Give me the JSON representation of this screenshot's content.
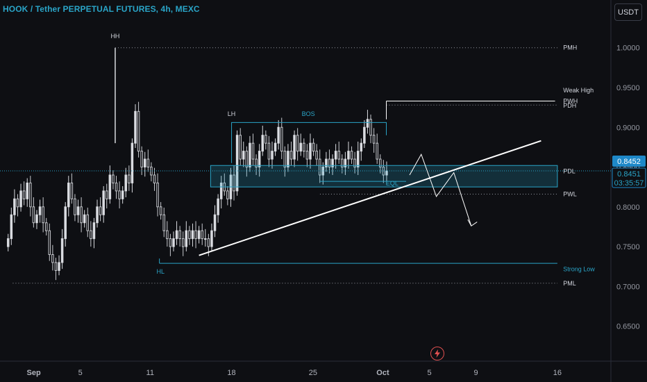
{
  "header": {
    "title": "HOOK / Tether PERPETUAL FUTURES, 4h, MEXC",
    "currency_button": "USDT"
  },
  "colors": {
    "background": "#0e0f13",
    "accent": "#2aa5c8",
    "candle_up": "#d9dbe0",
    "candle_down": "#c7c9ce",
    "trendline": "#ffffff",
    "price_tag": "#1e88c8",
    "lightning": "#e05050"
  },
  "icons": {
    "lightning": "lightning-icon"
  },
  "chart_data": {
    "type": "candlestick",
    "title": "HOOK / Tether PERPETUAL FUTURES, 4h, MEXC",
    "y_ticks": [
      "1.0000",
      "0.9500",
      "0.9000",
      "0.8500",
      "0.8000",
      "0.7500",
      "0.7000",
      "0.6500"
    ],
    "y_tick_values": [
      1.0,
      0.95,
      0.9,
      0.85,
      0.8,
      0.75,
      0.7,
      0.65
    ],
    "ylim": [
      0.606,
      1.06
    ],
    "x_ticks": [
      {
        "label": "Sep",
        "day": 1
      },
      {
        "label": "5",
        "day": 5
      },
      {
        "label": "11",
        "day": 11
      },
      {
        "label": "18",
        "day": 18
      },
      {
        "label": "25",
        "day": 25
      },
      {
        "label": "Oct",
        "day": 31
      },
      {
        "label": "5",
        "day": 35
      },
      {
        "label": "9",
        "day": 39
      },
      {
        "label": "16",
        "day": 46
      }
    ],
    "xlim": [
      -1.9,
      50.6
    ],
    "price_tags": {
      "upper_value": "0.8452",
      "lower_value": "0.8451",
      "countdown": "03:35:57"
    },
    "current_price": 0.8452,
    "closes": [
      0.76,
      0.79,
      0.81,
      0.8,
      0.82,
      0.81,
      0.83,
      0.8,
      0.78,
      0.79,
      0.8,
      0.78,
      0.77,
      0.74,
      0.73,
      0.72,
      0.73,
      0.76,
      0.8,
      0.83,
      0.81,
      0.79,
      0.8,
      0.78,
      0.79,
      0.77,
      0.76,
      0.78,
      0.8,
      0.79,
      0.82,
      0.81,
      0.84,
      0.83,
      0.82,
      0.81,
      0.82,
      0.84,
      0.83,
      0.88,
      0.92,
      0.87,
      0.85,
      0.86,
      0.85,
      0.84,
      0.83,
      0.8,
      0.79,
      0.77,
      0.76,
      0.75,
      0.76,
      0.77,
      0.76,
      0.75,
      0.77,
      0.76,
      0.77,
      0.76,
      0.77,
      0.76,
      0.76,
      0.75,
      0.77,
      0.79,
      0.81,
      0.83,
      0.82,
      0.81,
      0.84,
      0.82,
      0.89,
      0.86,
      0.87,
      0.85,
      0.88,
      0.86,
      0.85,
      0.87,
      0.89,
      0.88,
      0.86,
      0.87,
      0.88,
      0.9,
      0.87,
      0.85,
      0.87,
      0.86,
      0.89,
      0.87,
      0.88,
      0.87,
      0.86,
      0.88,
      0.87,
      0.86,
      0.84,
      0.85,
      0.86,
      0.85,
      0.86,
      0.87,
      0.86,
      0.85,
      0.86,
      0.87,
      0.86,
      0.85,
      0.87,
      0.88,
      0.9,
      0.91,
      0.89,
      0.88,
      0.86,
      0.85,
      0.84,
      0.845
    ],
    "annotations": {
      "labels": [
        "HH",
        "LH",
        "BOS",
        "HL",
        "PMH",
        "PWH",
        "PDH",
        "Weak High",
        "PDL",
        "EQL",
        "PWL",
        "Strong Low",
        "PML"
      ],
      "levels": {
        "PMH": 1.0,
        "PWH": 0.933,
        "PDH": 0.928,
        "BOS": 0.906,
        "PDL": 0.84,
        "PWL": 0.816,
        "Strong Low": 0.729,
        "PML": 0.704
      }
    }
  }
}
